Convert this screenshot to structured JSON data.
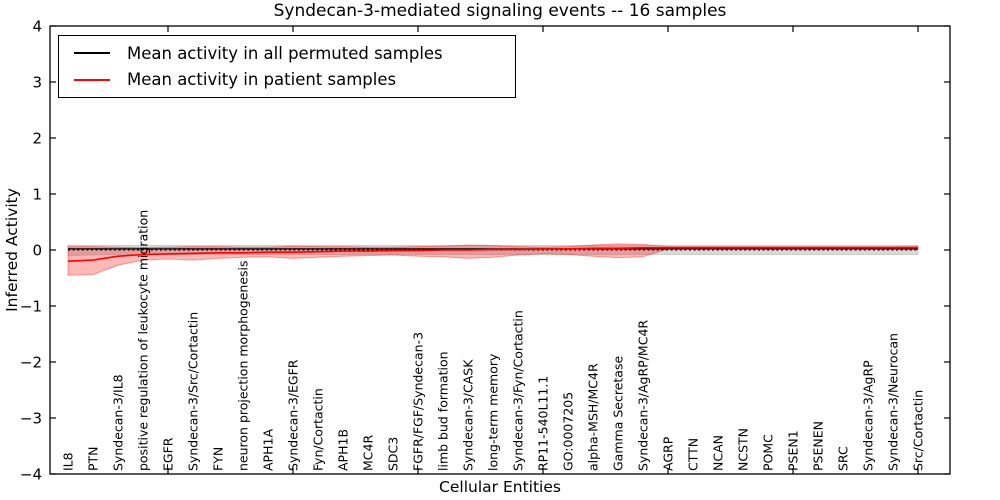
{
  "title": "Syndecan-3-mediated signaling events -- 16 samples",
  "axes": {
    "xlabel": "Cellular Entities",
    "ylabel": "Inferred Activity"
  },
  "legend": {
    "position": "upper left",
    "items": [
      {
        "label": "Mean activity in all permuted samples",
        "color": "#000000"
      },
      {
        "label": "Mean activity in patient samples",
        "color": "#ff0000"
      }
    ]
  },
  "chart_data": {
    "type": "line",
    "title": "Syndecan-3-mediated signaling events -- 16 samples",
    "xlabel": "Cellular Entities",
    "ylabel": "Inferred Activity",
    "ylim": [
      -4,
      4
    ],
    "yticks": [
      4,
      3,
      2,
      1,
      0,
      -1,
      -2,
      -3,
      -4
    ],
    "x_major_tick_indices": [
      4,
      9,
      14,
      19,
      24,
      29,
      34
    ],
    "grid": false,
    "zero_line": 0,
    "categories": [
      "IL8",
      "PTN",
      "Syndecan-3/IL8",
      "positive regulation of leukocyte migration",
      "EGFR",
      "Syndecan-3/Src/Cortactin",
      "FYN",
      "neuron projection morphogenesis",
      "APH1A",
      "Syndecan-3/EGFR",
      "Fyn/Cortactin",
      "APH1B",
      "MC4R",
      "SDC3",
      "FGFR/FGF/Syndecan-3",
      "limb bud formation",
      "Syndecan-3/CASK",
      "long-term memory",
      "Syndecan-3/Fyn/Cortactin",
      "RP11-540L11.1",
      "GO:0007205",
      "alpha-MSH/MC4R",
      "Gamma Secretase",
      "Syndecan-3/AgRP/MC4R",
      "AGRP",
      "CTTN",
      "NCAN",
      "NCSTN",
      "POMC",
      "PSEN1",
      "PSENEN",
      "SRC",
      "Syndecan-3/AgRP",
      "Syndecan-3/Neurocan",
      "Src/Cortactin"
    ],
    "series": [
      {
        "name": "Mean activity in all permuted samples",
        "color": "#000000",
        "band_fill": "rgba(130,130,130,0.30)",
        "band_stroke": "rgba(120,120,120,0.25)",
        "line_width": 1.3,
        "mean": [
          0.02,
          0.02,
          0.02,
          0.02,
          0.02,
          0.02,
          0.02,
          0.02,
          0.02,
          0.02,
          0.02,
          0.02,
          0.02,
          0.02,
          0.02,
          0.02,
          0.02,
          0.02,
          0.02,
          0.02,
          0.02,
          0.02,
          0.02,
          0.02,
          0.02,
          0.02,
          0.02,
          0.02,
          0.02,
          0.02,
          0.02,
          0.02,
          0.02,
          0.02,
          0.02
        ],
        "band_upper": [
          0.09,
          0.08,
          0.08,
          0.08,
          0.08,
          0.08,
          0.08,
          0.08,
          0.08,
          0.08,
          0.08,
          0.08,
          0.08,
          0.08,
          0.08,
          0.08,
          0.08,
          0.08,
          0.08,
          0.08,
          0.08,
          0.08,
          0.08,
          0.08,
          0.08,
          0.08,
          0.08,
          0.08,
          0.08,
          0.08,
          0.08,
          0.08,
          0.08,
          0.08,
          0.08
        ],
        "band_lower": [
          -0.1,
          -0.09,
          -0.08,
          -0.08,
          -0.08,
          -0.08,
          -0.08,
          -0.08,
          -0.08,
          -0.08,
          -0.08,
          -0.08,
          -0.08,
          -0.08,
          -0.08,
          -0.08,
          -0.08,
          -0.08,
          -0.08,
          -0.08,
          -0.08,
          -0.08,
          -0.08,
          -0.08,
          -0.08,
          -0.08,
          -0.08,
          -0.08,
          -0.08,
          -0.08,
          -0.08,
          -0.08,
          -0.08,
          -0.08,
          -0.08
        ]
      },
      {
        "name": "Mean activity in patient samples",
        "color": "#ff0000",
        "band_fill": "rgba(255,0,0,0.28)",
        "band_stroke": "rgba(255,0,0,0.35)",
        "line_width": 1.6,
        "mean": [
          -0.2,
          -0.18,
          -0.11,
          -0.08,
          -0.07,
          -0.06,
          -0.05,
          -0.05,
          -0.04,
          -0.04,
          -0.03,
          -0.02,
          -0.02,
          -0.01,
          -0.01,
          0.0,
          0.0,
          0.01,
          0.01,
          0.02,
          0.02,
          0.03,
          0.03,
          0.04,
          0.04,
          0.04,
          0.04,
          0.04,
          0.04,
          0.04,
          0.04,
          0.04,
          0.04,
          0.04,
          0.04
        ],
        "band_upper": [
          0.06,
          0.06,
          0.05,
          0.04,
          0.05,
          0.06,
          0.06,
          0.05,
          0.05,
          0.07,
          0.06,
          0.06,
          0.05,
          0.05,
          0.06,
          0.07,
          0.09,
          0.08,
          0.06,
          0.05,
          0.06,
          0.09,
          0.11,
          0.1,
          0.06,
          0.06,
          0.06,
          0.06,
          0.06,
          0.06,
          0.06,
          0.06,
          0.06,
          0.06,
          0.07
        ],
        "band_lower": [
          -0.45,
          -0.44,
          -0.27,
          -0.18,
          -0.16,
          -0.18,
          -0.15,
          -0.13,
          -0.12,
          -0.15,
          -0.13,
          -0.11,
          -0.1,
          -0.09,
          -0.11,
          -0.12,
          -0.15,
          -0.13,
          -0.09,
          -0.07,
          -0.08,
          -0.11,
          -0.14,
          -0.12,
          0.02,
          0.02,
          0.02,
          0.02,
          0.02,
          0.02,
          0.02,
          0.02,
          0.02,
          0.02,
          0.01
        ]
      }
    ]
  }
}
